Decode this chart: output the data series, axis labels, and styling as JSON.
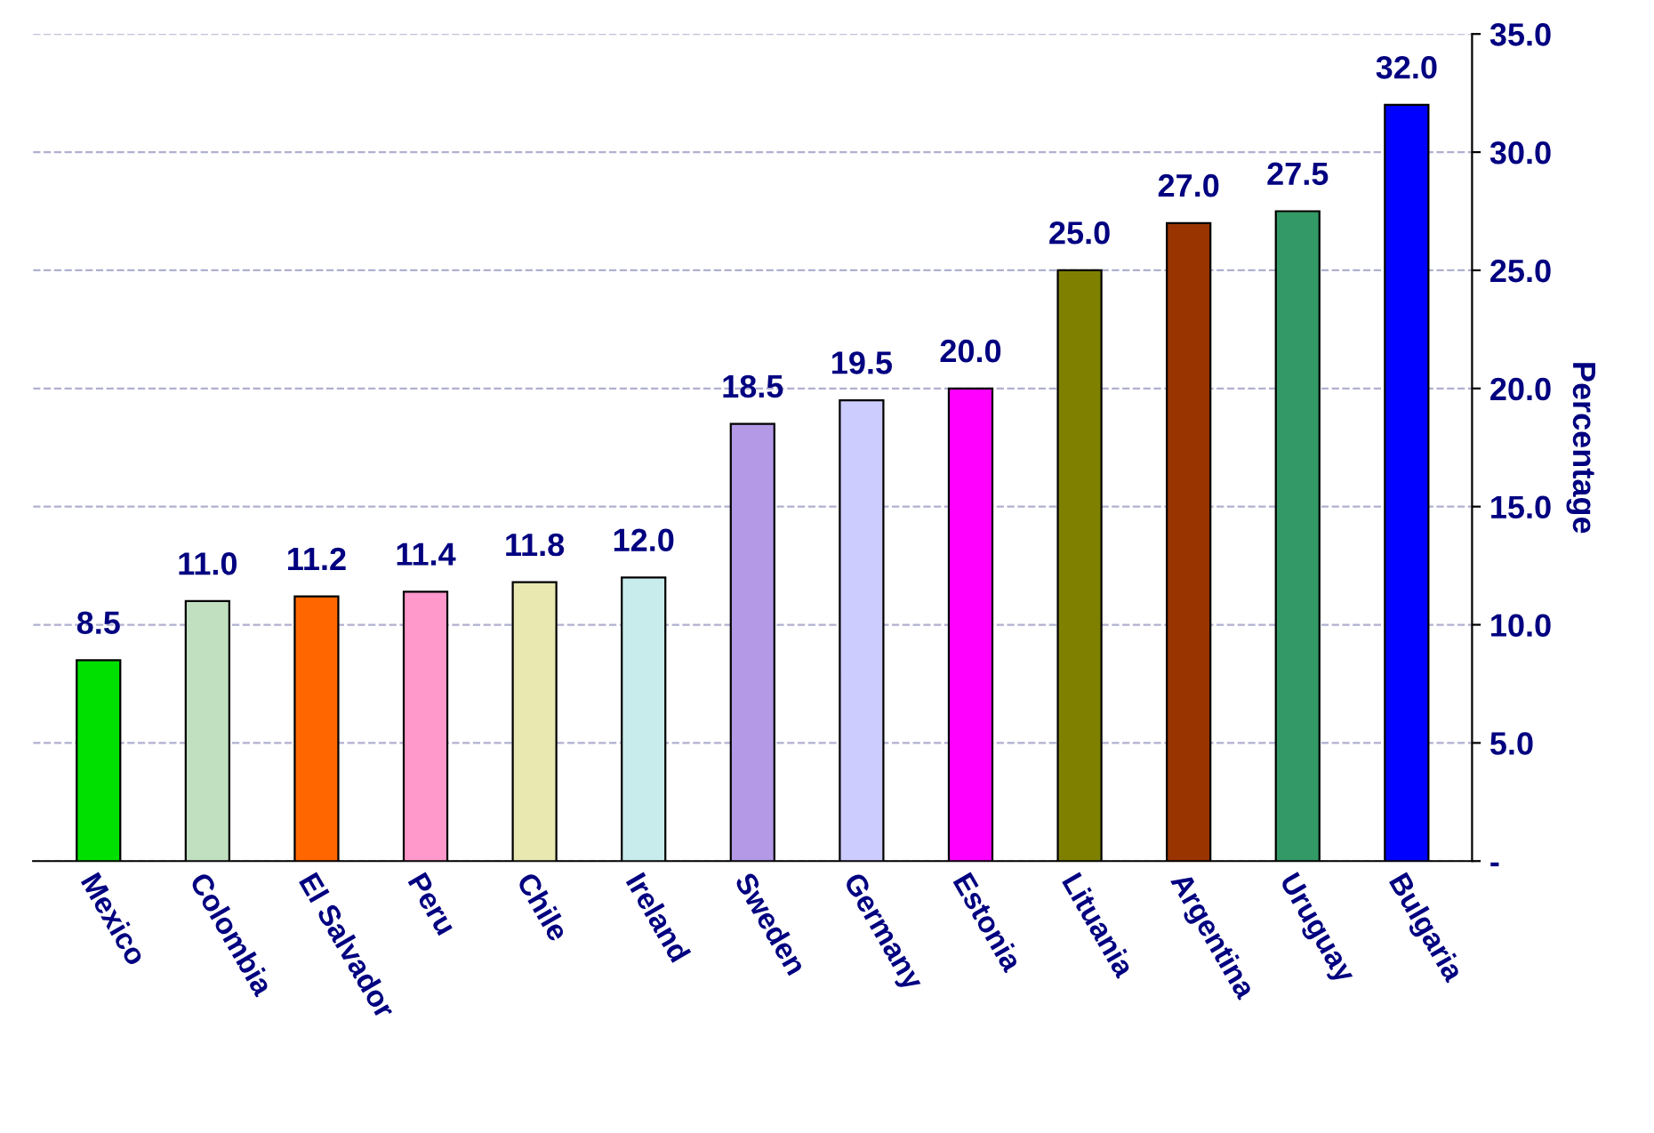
{
  "chart_data": {
    "type": "bar",
    "categories": [
      "Mexico",
      "Colombia",
      "El Salvador",
      "Peru",
      "Chile",
      "Ireland",
      "Sweden",
      "Germany",
      "Estonia",
      "Lituania",
      "Argentina",
      "Uruguay",
      "Bulgaria"
    ],
    "values": [
      8.5,
      11.0,
      11.2,
      11.4,
      11.8,
      12.0,
      18.5,
      19.5,
      20.0,
      25.0,
      27.0,
      27.5,
      32.0
    ],
    "value_labels": [
      "8.5",
      "11.0",
      "11.2",
      "11.4",
      "11.8",
      "12.0",
      "18.5",
      "19.5",
      "20.0",
      "25.0",
      "27.0",
      "27.5",
      "32.0"
    ],
    "colors": [
      "#00e000",
      "#c0e0c0",
      "#ff6600",
      "#ff99cc",
      "#e8e8b0",
      "#c8ecec",
      "#b399e6",
      "#ccccff",
      "#ff00ff",
      "#808000",
      "#993300",
      "#339966",
      "#0000ff"
    ],
    "ylabel": "Percentage",
    "ylim": [
      0,
      35
    ],
    "yticks": [
      {
        "value": 0,
        "label": "-"
      },
      {
        "value": 5,
        "label": "5.0"
      },
      {
        "value": 10,
        "label": "10.0"
      },
      {
        "value": 15,
        "label": "15.0"
      },
      {
        "value": 20,
        "label": "20.0"
      },
      {
        "value": 25,
        "label": "25.0"
      },
      {
        "value": 30,
        "label": "30.0"
      },
      {
        "value": 35,
        "label": "35.0"
      }
    ],
    "grid": "y"
  }
}
